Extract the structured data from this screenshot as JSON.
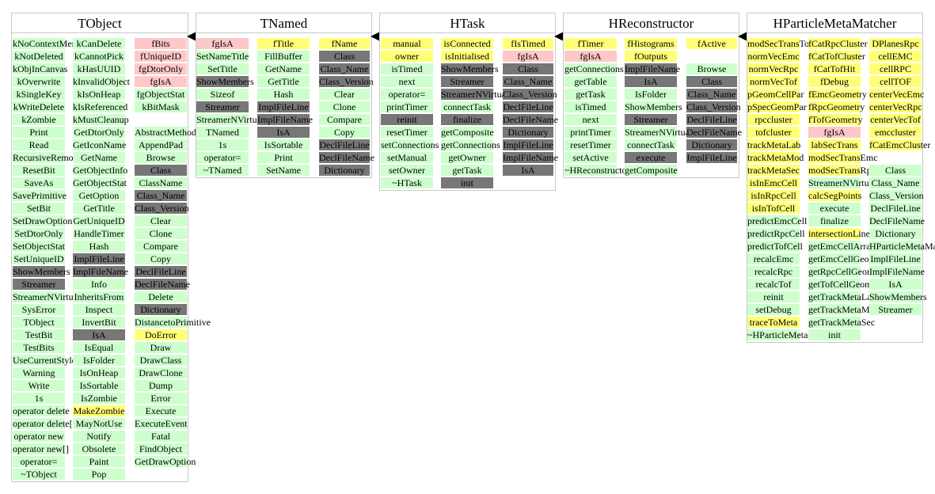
{
  "colors": {
    "method": "#ccffcc",
    "meta": "#777777",
    "static": "#ffc8c8",
    "member": "#ffff77"
  },
  "classes": {
    "tobject": {
      "title": "TObject",
      "col1": [
        "kNoContextMenu",
        "kNotDeleted",
        "kObjInCanvas",
        "kOverwrite",
        "kSingleKey",
        "kWriteDelete",
        "kZombie",
        "Print",
        "Read",
        "RecursiveRemove",
        "ResetBit",
        "SaveAs",
        "SavePrimitive",
        "SetBit",
        "SetDrawOption",
        "SetDtorOnly",
        "SetObjectStat",
        "SetUniqueID",
        "ShowMembers",
        "Streamer",
        "StreamerNVirtual",
        "SysError",
        "TObject",
        "TestBit",
        "TestBits",
        "UseCurrentStyle",
        "Warning",
        "Write",
        "1s",
        "operator delete",
        "operator delete[]",
        "operator new",
        "operator new[]",
        "operator=",
        "~TObject"
      ],
      "col2": [
        "kCanDelete",
        "kCannotPick",
        "kHasUUID",
        "kInvalidObject",
        "kIsOnHeap",
        "kIsReferenced",
        "kMustCleanup",
        "GetDtorOnly",
        "GetIconName",
        "GetName",
        "GetObjectInfo",
        "GetObjectStat",
        "GetOption",
        "GetTitle",
        "GetUniqueID",
        "HandleTimer",
        "Hash",
        "ImplFileLine",
        "ImplFileName",
        "Info",
        "InheritsFrom",
        "Inspect",
        "InvertBit",
        "IsA",
        "IsEqual",
        "IsFolder",
        "IsOnHeap",
        "IsSortable",
        "IsZombie",
        "MakeZombie",
        "MayNotUse",
        "Notify",
        "Obsolete",
        "Paint",
        "Pop"
      ],
      "col3a": [
        "fBits",
        "fUniqueID",
        "fgDtorOnly",
        "fgIsA",
        "fgObjectStat",
        "kBitMask"
      ],
      "col3b": [
        "AbstractMethod",
        "AppendPad",
        "Browse",
        "Class",
        "ClassName",
        "Class_Name",
        "Class_Version",
        "Clear",
        "Clone",
        "Compare",
        "Copy",
        "DeclFileLine",
        "DeclFileName",
        "Delete",
        "Dictionary",
        "DistancetoPrimitive",
        "DoError",
        "Draw",
        "DrawClass",
        "DrawClone",
        "Dump",
        "Error",
        "Execute",
        "ExecuteEvent",
        "Fatal",
        "FindObject",
        "GetDrawOption"
      ]
    },
    "tnamed": {
      "title": "TNamed",
      "col1": [
        "fgIsA",
        "SetNameTitle",
        "SetTitle",
        "ShowMembers",
        "Sizeof",
        "Streamer",
        "StreamerNVirtual",
        "TNamed",
        "1s",
        "operator=",
        "~TNamed"
      ],
      "col2": [
        "fTitle",
        "FillBuffer",
        "GetName",
        "GetTitle",
        "Hash",
        "ImplFileLine",
        "ImplFileName",
        "IsA",
        "IsSortable",
        "Print",
        "SetName"
      ],
      "col3": [
        "fName",
        "Class",
        "Class_Name",
        "Class_Version",
        "Clear",
        "Clone",
        "Compare",
        "Copy",
        "DeclFileLine",
        "DeclFileName",
        "Dictionary"
      ]
    },
    "htask": {
      "title": "HTask",
      "col1": [
        "manual",
        "owner",
        "isTimed",
        "next",
        "operator=",
        "printTimer",
        "reinit",
        "resetTimer",
        "setConnections",
        "setManual",
        "setOwner",
        "~HTask"
      ],
      "col2": [
        "isConnected",
        "isInitialised",
        "ShowMembers",
        "Streamer",
        "StreamerNVirtual",
        "connectTask",
        "finalize",
        "getComposite",
        "getConnections",
        "getOwner",
        "getTask",
        "init"
      ],
      "col3": [
        "fIsTimed",
        "fgIsA",
        "Class",
        "Class_Name",
        "Class_Version",
        "DeclFileLine",
        "DeclFileName",
        "Dictionary",
        "ImplFileLine",
        "ImplFileName",
        "IsA"
      ]
    },
    "hreconstructor": {
      "title": "HReconstructor",
      "col1": [
        "fTimer",
        "fgIsA",
        "getConnections",
        "getTable",
        "getTask",
        "isTimed",
        "next",
        "printTimer",
        "resetTimer",
        "setActive",
        "~HReconstructor"
      ],
      "col2": [
        "fHistograms",
        "fOutputs",
        "ImplFileName",
        "IsA",
        "IsFolder",
        "ShowMembers",
        "Streamer",
        "StreamerNVirtual",
        "connectTask",
        "execute",
        "getComposite"
      ],
      "col3": [
        "fActive",
        "",
        "Browse",
        "Class",
        "Class_Name",
        "Class_Version",
        "DeclFileLine",
        "DeclFileName",
        "Dictionary",
        "ImplFileLine"
      ]
    },
    "hparticle": {
      "title": "HParticleMetaMatcher",
      "col1": [
        "modSecTransTof",
        "normVecEmc",
        "normVecRpc",
        "normVecTof",
        "pGeomCellPar",
        "pSpecGeomPar",
        "rpccluster",
        "tofcluster",
        "trackMetaLab",
        "trackMetaMod",
        "trackMetaSec",
        "isInEmcCell",
        "isInRpcCell",
        "isInTofCell",
        "predictEmcCell",
        "predictRpcCell",
        "predictTofCell",
        "recalcEmc",
        "recalcRpc",
        "recalcTof",
        "reinit",
        "setDebug",
        "traceToMeta",
        "~HParticleMetaMatcher"
      ],
      "col2": [
        "fCatRpcCluster",
        "fCatTofCluster",
        "fCatTofHit",
        "fDebug",
        "fEmcGeometry",
        "fRpcGeometry",
        "fTofGeometry",
        "fgIsA",
        "labSecTrans",
        "modSecTransEmc",
        "modSecTransRpc",
        "StreamerNVirtual",
        "calcSegPoints",
        "execute",
        "finalize",
        "intersectionLinePlane",
        "getEmcCellArray",
        "getEmcCellGeom",
        "getRpcCellGeom",
        "getTofCellGeom",
        "getTrackMetaLab",
        "getTrackMetaMod",
        "getTrackMetaSec",
        "init"
      ],
      "col3": [
        "DPlanesRpc",
        "cellEMC",
        "cellRPC",
        "cellTOF",
        "centerVecEmc",
        "centerVecRpc",
        "centerVecTof",
        "emccluster",
        "fCatEmcCluster",
        "",
        "Class",
        "Class_Name",
        "Class_Version",
        "DeclFileLine",
        "DeclFileName",
        "Dictionary",
        "HParticleMetaMatch",
        "ImplFileLine",
        "ImplFileName",
        "IsA",
        "ShowMembers",
        "Streamer"
      ]
    }
  }
}
